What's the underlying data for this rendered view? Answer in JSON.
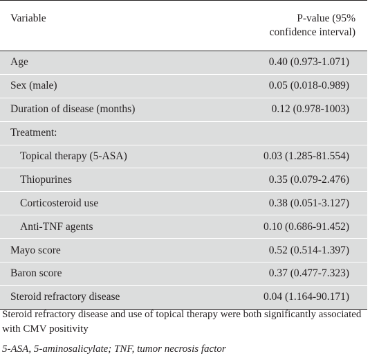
{
  "table": {
    "header": {
      "variable": "Variable",
      "pvalue_line1": "P-value (95%",
      "pvalue_line2": "confidence interval)"
    },
    "rows": [
      {
        "variable": "Age",
        "value": "0.40 (0.973-1.071)"
      },
      {
        "variable": "Sex (male)",
        "value": "0.05 (0.018-0.989)"
      },
      {
        "variable": "Duration of disease (months)",
        "value": "0.12 (0.978-1003)"
      },
      {
        "variable": "Treatment:",
        "value": ""
      },
      {
        "variable": "Topical therapy (5-ASA)",
        "value": "0.03 (1.285-81.554)"
      },
      {
        "variable": "Thiopurines",
        "value": "0.35 (0.079-2.476)"
      },
      {
        "variable": "Corticosteroid use",
        "value": "0.38 (0.051-3.127)"
      },
      {
        "variable": "Anti-TNF agents",
        "value": "0.10 (0.686-91.452)"
      },
      {
        "variable": "Mayo score",
        "value": "0.52 (0.514-1.397)"
      },
      {
        "variable": "Baron score",
        "value": "0.37 (0.477-7.323)"
      },
      {
        "variable": "Steroid refractory disease",
        "value": "0.04 (1.164-90.171)"
      }
    ]
  },
  "footnote": "Steroid refractory disease and use of topical therapy were both significantly associated with CMV positivity",
  "abbreviations": "5-ASA, 5-aminosalicylate; TNF, tumor necrosis factor",
  "colors": {
    "row_background": "#dcdddd",
    "text": "#231f20",
    "rule": "#231f20"
  }
}
